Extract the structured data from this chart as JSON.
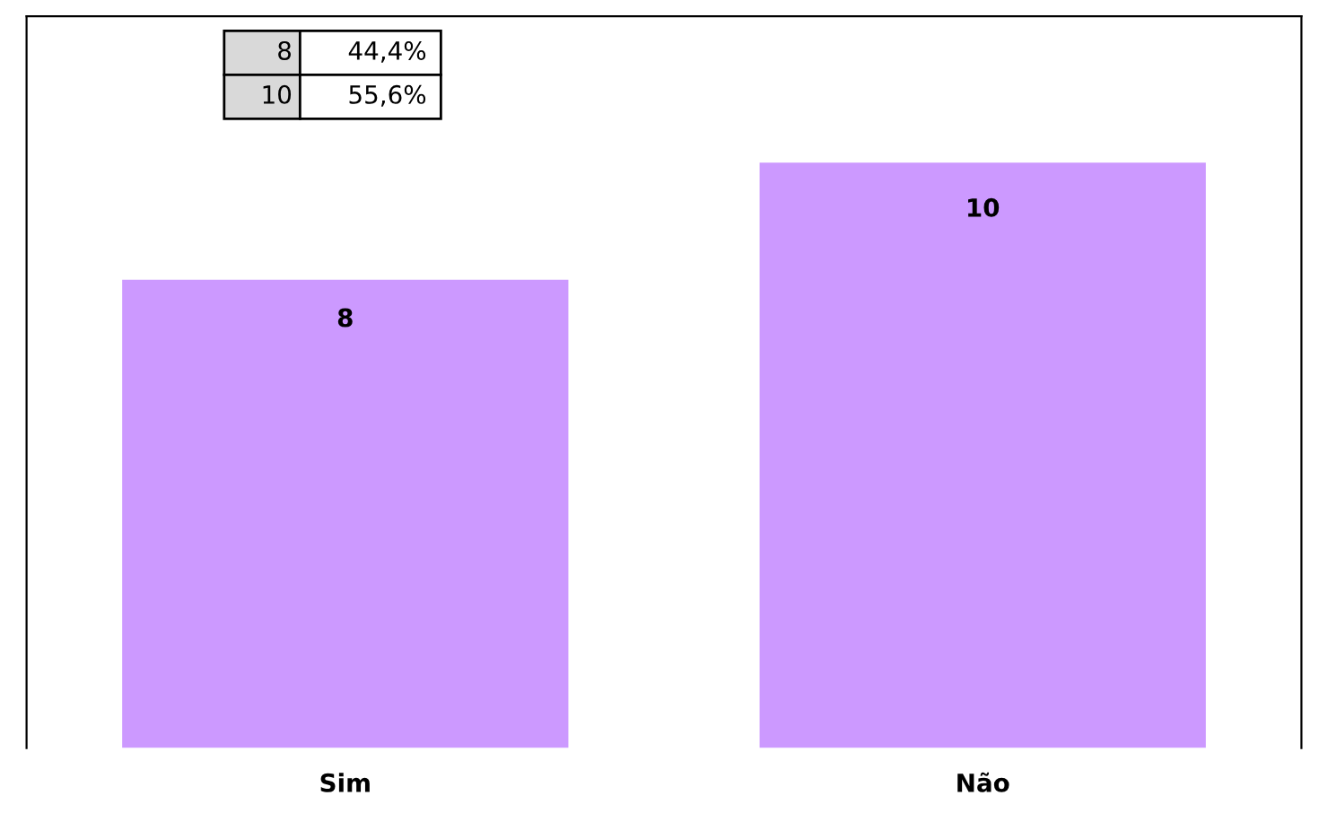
{
  "chart_data": {
    "type": "bar",
    "categories": [
      "Sim",
      "Não"
    ],
    "values": [
      8,
      10
    ],
    "color": "#cc99ff",
    "data_labels": true,
    "grid": false,
    "legend": false,
    "tick_labels": "x",
    "annotations": [
      "8",
      "44,4%",
      "10",
      "55,6%"
    ]
  }
}
